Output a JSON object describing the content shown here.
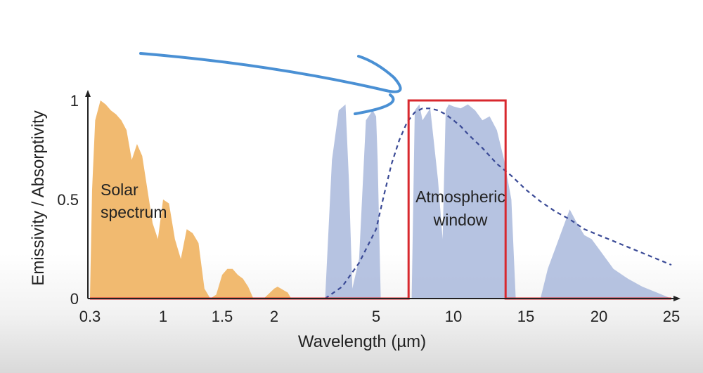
{
  "chart_data": {
    "type": "area",
    "title": "",
    "xlabel": "Wavelength (µm)",
    "ylabel": "Emissivity / Absorptivity",
    "x_ticks": [
      "0.3",
      "1",
      "1.5",
      "2",
      "5",
      "10",
      "15",
      "20",
      "25"
    ],
    "y_ticks": [
      "0",
      "0.5",
      "1"
    ],
    "ylim": [
      0,
      1
    ],
    "grid": false,
    "annotations": [
      "Solar",
      "spectrum",
      "Atmospheric",
      "window"
    ],
    "series": [
      {
        "role": "solar spectrum (filled)",
        "color": "#f0b464",
        "x": [
          0.3,
          0.32,
          0.35,
          0.4,
          0.45,
          0.5,
          0.55,
          0.6,
          0.65,
          0.7,
          0.75,
          0.8,
          0.85,
          0.9,
          0.95,
          1.0,
          1.05,
          1.1,
          1.15,
          1.2,
          1.25,
          1.3,
          1.35,
          1.4,
          1.45,
          1.5,
          1.55,
          1.6,
          1.65,
          1.7,
          1.75,
          1.8,
          1.85,
          1.9,
          2.0,
          2.1,
          2.2,
          2.3,
          2.4,
          2.5
        ],
        "y": [
          0.0,
          0.55,
          0.9,
          1.0,
          0.98,
          0.95,
          0.93,
          0.9,
          0.85,
          0.7,
          0.78,
          0.72,
          0.55,
          0.38,
          0.3,
          0.5,
          0.48,
          0.3,
          0.2,
          0.35,
          0.33,
          0.28,
          0.05,
          0.0,
          0.02,
          0.12,
          0.15,
          0.15,
          0.12,
          0.1,
          0.06,
          0.0,
          0.0,
          0.0,
          0.05,
          0.06,
          0.05,
          0.04,
          0.03,
          0.0
        ]
      },
      {
        "role": "atmospheric transmittance (filled)",
        "color": "#a9b8dc",
        "x": [
          3.5,
          3.7,
          3.9,
          4.1,
          4.2,
          4.3,
          4.5,
          4.7,
          4.9,
          5.0,
          5.1,
          5.3,
          7.3,
          7.5,
          7.8,
          8.0,
          8.5,
          9.0,
          9.3,
          9.5,
          9.7,
          10.0,
          10.5,
          11.0,
          11.5,
          12.0,
          12.5,
          13.0,
          13.5,
          14.0,
          14.3,
          16.0,
          16.5,
          17.0,
          17.5,
          18.0,
          18.5,
          19.0,
          19.5,
          20.0,
          20.5,
          21.0,
          22.0,
          23.0,
          24.0,
          25.0
        ],
        "y": [
          0.0,
          0.7,
          0.95,
          0.98,
          0.6,
          0.05,
          0.2,
          0.9,
          0.95,
          0.92,
          0.7,
          0.0,
          0.0,
          0.95,
          0.98,
          0.9,
          0.96,
          0.6,
          0.3,
          0.95,
          0.98,
          0.97,
          0.96,
          0.98,
          0.95,
          0.9,
          0.92,
          0.85,
          0.7,
          0.5,
          0.0,
          0.0,
          0.15,
          0.25,
          0.35,
          0.45,
          0.38,
          0.32,
          0.3,
          0.25,
          0.2,
          0.15,
          0.1,
          0.06,
          0.03,
          0.0
        ]
      },
      {
        "role": "blackbody emission curve (dashed)",
        "color": "#3a4a96",
        "x": [
          3.5,
          4.0,
          4.5,
          5.0,
          5.5,
          6.0,
          6.5,
          7.0,
          7.5,
          8.0,
          8.5,
          9.0,
          9.5,
          10.0,
          10.5,
          11.0,
          12.0,
          13.0,
          14.0,
          15.0,
          16.0,
          17.0,
          18.0,
          19.0,
          20.0,
          21.0,
          22.0,
          23.0,
          24.0,
          25.0
        ],
        "y": [
          0.0,
          0.06,
          0.18,
          0.35,
          0.52,
          0.68,
          0.8,
          0.89,
          0.94,
          0.96,
          0.96,
          0.95,
          0.93,
          0.9,
          0.87,
          0.83,
          0.76,
          0.68,
          0.62,
          0.55,
          0.49,
          0.44,
          0.4,
          0.35,
          0.32,
          0.29,
          0.26,
          0.23,
          0.2,
          0.17
        ]
      },
      {
        "role": "ideal emitter (8–13 µm window)",
        "color": "#d8282e",
        "x": [
          0.3,
          7.1,
          7.1,
          13.6,
          13.6,
          25.0
        ],
        "y": [
          0.0,
          0.0,
          1.0,
          1.0,
          0.0,
          0.0
        ]
      }
    ]
  }
}
